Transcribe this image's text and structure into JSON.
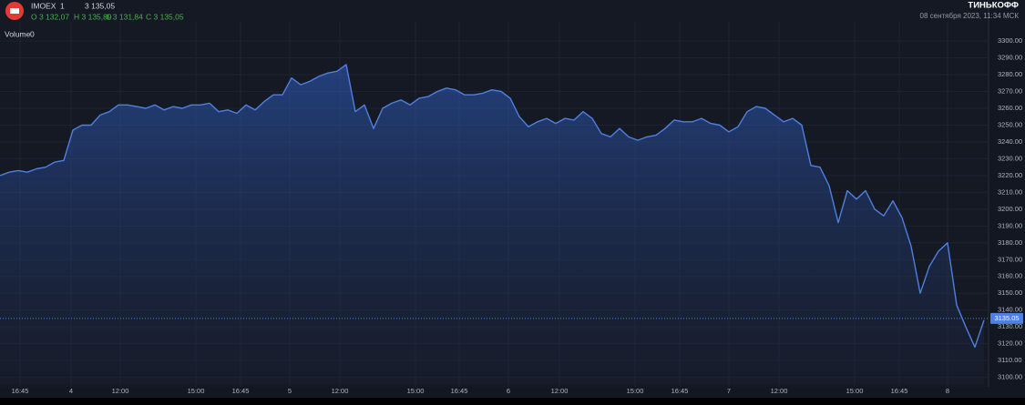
{
  "chart_data": {
    "type": "area",
    "symbol": "IMOEX",
    "interval": 1,
    "last": "3 135,05",
    "ohlc": [
      "O 3 132,07",
      "H 3 135,89",
      "L 3 131,84",
      "C 3 135,05"
    ],
    "brand": "ТИНЬКОФФ",
    "timestamp": "08 сентября 2023, 11:34 МСК",
    "volume_label": "Volume",
    "volume_value": 0,
    "color": "#4f7fe0",
    "grid": true,
    "price_marker": {
      "value": 3135.05,
      "label": "3135.05"
    },
    "xlim": [
      0,
      1085
    ],
    "ylim": [
      3096,
      3306
    ],
    "xticks": [
      {
        "value": 22,
        "label": "16:45"
      },
      {
        "value": 78,
        "label": "4"
      },
      {
        "value": 132,
        "label": "12:00"
      },
      {
        "value": 215,
        "label": "15:00"
      },
      {
        "value": 264,
        "label": "16:45"
      },
      {
        "value": 318,
        "label": "5"
      },
      {
        "value": 373,
        "label": "12:00"
      },
      {
        "value": 456,
        "label": "15:00"
      },
      {
        "value": 504,
        "label": "16:45"
      },
      {
        "value": 558,
        "label": "6"
      },
      {
        "value": 614,
        "label": "12:00"
      },
      {
        "value": 697,
        "label": "15:00"
      },
      {
        "value": 746,
        "label": "16:45"
      },
      {
        "value": 800,
        "label": "7"
      },
      {
        "value": 855,
        "label": "12:00"
      },
      {
        "value": 938,
        "label": "15:00"
      },
      {
        "value": 987,
        "label": "16:45"
      },
      {
        "value": 1040,
        "label": "8"
      }
    ],
    "yticks": [
      {
        "value": 3100,
        "label": "3100.00"
      },
      {
        "value": 3110,
        "label": "3110.00"
      },
      {
        "value": 3120,
        "label": "3120.00"
      },
      {
        "value": 3130,
        "label": "3130.00"
      },
      {
        "value": 3140,
        "label": "3140.00"
      },
      {
        "value": 3150,
        "label": "3150.00"
      },
      {
        "value": 3160,
        "label": "3160.00"
      },
      {
        "value": 3170,
        "label": "3170.00"
      },
      {
        "value": 3180,
        "label": "3180.00"
      },
      {
        "value": 3190,
        "label": "3190.00"
      },
      {
        "value": 3200,
        "label": "3200.00"
      },
      {
        "value": 3210,
        "label": "3210.00"
      },
      {
        "value": 3220,
        "label": "3220.00"
      },
      {
        "value": 3230,
        "label": "3230.00"
      },
      {
        "value": 3240,
        "label": "3240.00"
      },
      {
        "value": 3250,
        "label": "3250.00"
      },
      {
        "value": 3260,
        "label": "3260.00"
      },
      {
        "value": 3270,
        "label": "3270.00"
      },
      {
        "value": 3280,
        "label": "3280.00"
      },
      {
        "value": 3290,
        "label": "3290.00"
      },
      {
        "value": 3300,
        "label": "3300.00"
      }
    ],
    "x": [
      0,
      10,
      20,
      30,
      40,
      50,
      60,
      70,
      80,
      90,
      100,
      110,
      120,
      130,
      140,
      150,
      160,
      170,
      180,
      190,
      200,
      210,
      220,
      230,
      240,
      250,
      260,
      270,
      280,
      290,
      300,
      310,
      320,
      330,
      340,
      350,
      360,
      370,
      380,
      390,
      400,
      410,
      420,
      430,
      440,
      450,
      460,
      470,
      480,
      490,
      500,
      510,
      520,
      530,
      540,
      550,
      560,
      570,
      580,
      590,
      600,
      610,
      620,
      630,
      640,
      650,
      660,
      670,
      680,
      690,
      700,
      710,
      720,
      730,
      740,
      750,
      760,
      770,
      780,
      790,
      800,
      810,
      820,
      830,
      840,
      850,
      860,
      870,
      880,
      890,
      900,
      910,
      920,
      930,
      940,
      950,
      960,
      970,
      980,
      990,
      1000,
      1010,
      1020,
      1030,
      1040,
      1050,
      1060,
      1070,
      1080
    ],
    "values": [
      3220,
      3222,
      3223,
      3222,
      3224,
      3225,
      3228,
      3229,
      3247,
      3250,
      3250,
      3256,
      3258,
      3262,
      3262,
      3261,
      3260,
      3262,
      3259,
      3261,
      3260,
      3262,
      3262,
      3263,
      3258,
      3259,
      3257,
      3262,
      3259,
      3264,
      3268,
      3268,
      3278,
      3274,
      3276,
      3279,
      3281,
      3282,
      3286,
      3258,
      3262,
      3248,
      3260,
      3263,
      3265,
      3262,
      3266,
      3267,
      3270,
      3272,
      3271,
      3268,
      3268,
      3269,
      3271,
      3270,
      3266,
      3255,
      3249,
      3252,
      3254,
      3251,
      3254,
      3253,
      3258,
      3254,
      3245,
      3243,
      3248,
      3243,
      3241,
      3243,
      3244,
      3248,
      3253,
      3252,
      3252,
      3254,
      3251,
      3250,
      3246,
      3249,
      3258,
      3261,
      3260,
      3256,
      3252,
      3254,
      3250,
      3226,
      3225,
      3214,
      3192,
      3211,
      3206,
      3211,
      3200,
      3196,
      3205,
      3195,
      3178,
      3150,
      3166,
      3175,
      3180,
      3143,
      3130,
      3118,
      3134
    ]
  }
}
